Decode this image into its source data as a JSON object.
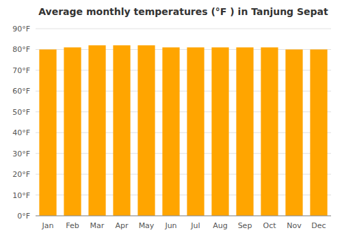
{
  "chart_data": {
    "type": "bar",
    "title": "Average monthly temperatures (°F ) in Tanjung Sepat",
    "categories": [
      "Jan",
      "Feb",
      "Mar",
      "Apr",
      "May",
      "Jun",
      "Jul",
      "Aug",
      "Sep",
      "Oct",
      "Nov",
      "Dec"
    ],
    "values": [
      80,
      81,
      82,
      82,
      82,
      81,
      81,
      81,
      81,
      81,
      80,
      80
    ],
    "color": "#FFA500",
    "ylim": [
      0,
      90
    ],
    "yticks": [
      {
        "value": 0,
        "label": "0°F"
      },
      {
        "value": 10,
        "label": "10°F"
      },
      {
        "value": 20,
        "label": "20°F"
      },
      {
        "value": 30,
        "label": "30°F"
      },
      {
        "value": 40,
        "label": "40°F"
      },
      {
        "value": 50,
        "label": "50°F"
      },
      {
        "value": 60,
        "label": "60°F"
      },
      {
        "value": 70,
        "label": "70°F"
      },
      {
        "value": 80,
        "label": "80°F"
      },
      {
        "value": 90,
        "label": "90°F"
      }
    ],
    "grid": true
  }
}
